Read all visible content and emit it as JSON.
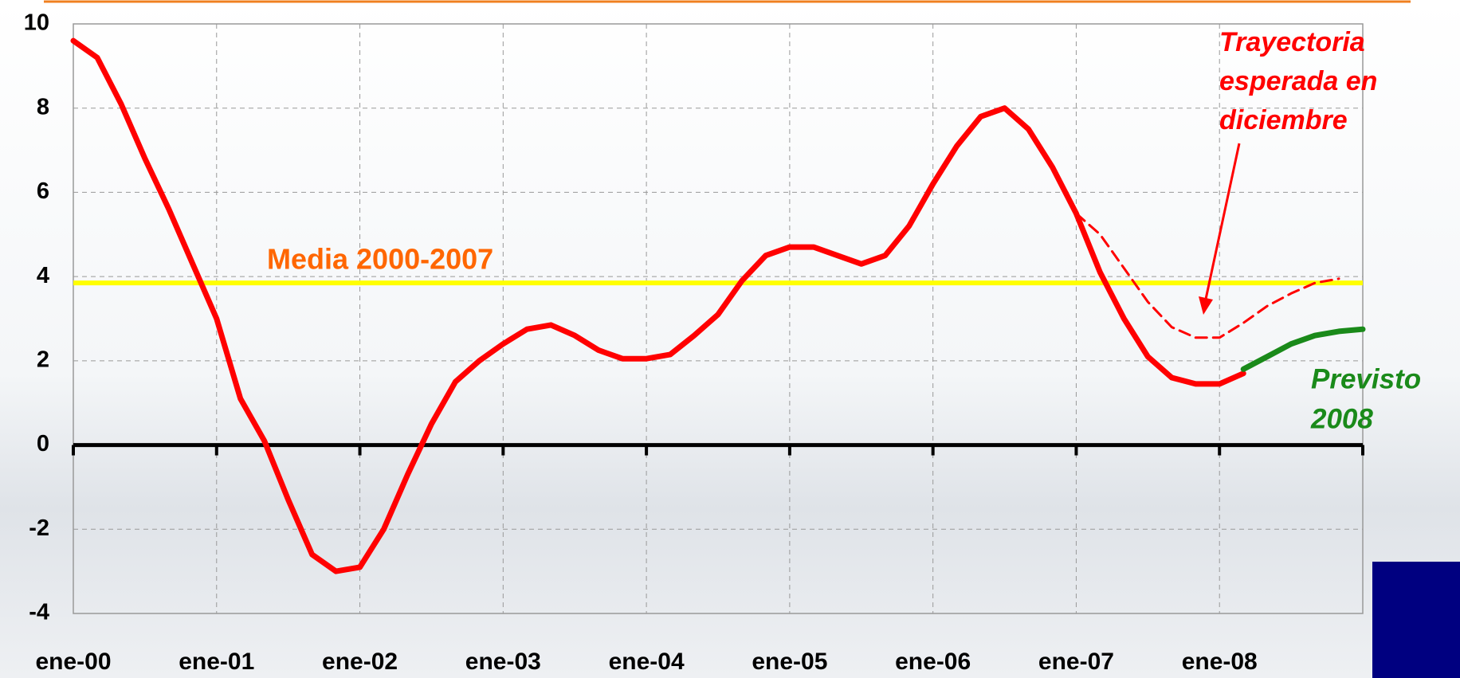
{
  "chart_data": {
    "type": "line",
    "categories": [
      "ene-00",
      null,
      null,
      null,
      null,
      null,
      "ene-01",
      null,
      null,
      null,
      null,
      null,
      "ene-02",
      null,
      null,
      null,
      null,
      null,
      "ene-03",
      null,
      null,
      null,
      null,
      null,
      "ene-04",
      null,
      null,
      null,
      null,
      null,
      "ene-05",
      null,
      null,
      null,
      null,
      null,
      "ene-06",
      null,
      null,
      null,
      null,
      null,
      "ene-07",
      null,
      null,
      null,
      null,
      null,
      "ene-08",
      null,
      null,
      null,
      null,
      null,
      null
    ],
    "series": [
      {
        "color": "#ff0000",
        "style": "solid",
        "values": [
          9.6,
          9.2,
          8.1,
          6.8,
          5.6,
          4.3,
          3.0,
          1.1,
          0.1,
          -1.3,
          -2.6,
          -3.0,
          -2.9,
          -2.0,
          -0.7,
          0.5,
          1.5,
          2.0,
          2.4,
          2.75,
          2.85,
          2.6,
          2.25,
          2.05,
          2.05,
          2.15,
          2.6,
          3.1,
          3.9,
          4.5,
          4.7,
          4.7,
          4.5,
          4.3,
          4.5,
          5.2,
          6.2,
          7.1,
          7.8,
          8.0,
          7.5,
          6.6,
          5.5,
          4.1,
          3.0,
          2.1,
          1.6,
          1.45,
          1.45,
          1.7,
          null,
          null,
          null,
          null,
          null
        ]
      },
      {
        "color": "#ff0000",
        "style": "dashed",
        "values": [
          null,
          null,
          null,
          null,
          null,
          null,
          null,
          null,
          null,
          null,
          null,
          null,
          null,
          null,
          null,
          null,
          null,
          null,
          null,
          null,
          null,
          null,
          null,
          null,
          null,
          null,
          null,
          null,
          null,
          null,
          null,
          null,
          null,
          null,
          null,
          null,
          null,
          null,
          null,
          null,
          null,
          null,
          5.5,
          5.0,
          4.2,
          3.4,
          2.8,
          2.55,
          2.55,
          2.9,
          3.3,
          3.6,
          3.85,
          3.95,
          null
        ]
      },
      {
        "color": "#1a8a1a",
        "style": "solid",
        "values": [
          null,
          null,
          null,
          null,
          null,
          null,
          null,
          null,
          null,
          null,
          null,
          null,
          null,
          null,
          null,
          null,
          null,
          null,
          null,
          null,
          null,
          null,
          null,
          null,
          null,
          null,
          null,
          null,
          null,
          null,
          null,
          null,
          null,
          null,
          null,
          null,
          null,
          null,
          null,
          null,
          null,
          null,
          null,
          null,
          null,
          null,
          null,
          null,
          null,
          1.8,
          2.1,
          2.4,
          2.6,
          2.7,
          2.75
        ]
      }
    ],
    "reference_line": {
      "value": 3.85,
      "label": "Media 2000-2007",
      "color": "#ffff00",
      "label_color": "#ff6600"
    },
    "annotations": [
      {
        "lines": [
          "Trayectoria",
          "esperada en",
          "diciembre"
        ],
        "color": "#ff0000"
      },
      {
        "lines": [
          "Previsto",
          "2008"
        ],
        "color": "#1a8a1a"
      }
    ],
    "ylim": [
      -4,
      10
    ],
    "yticks": [
      -4,
      -2,
      0,
      2,
      4,
      6,
      8,
      10
    ],
    "grid": true
  }
}
